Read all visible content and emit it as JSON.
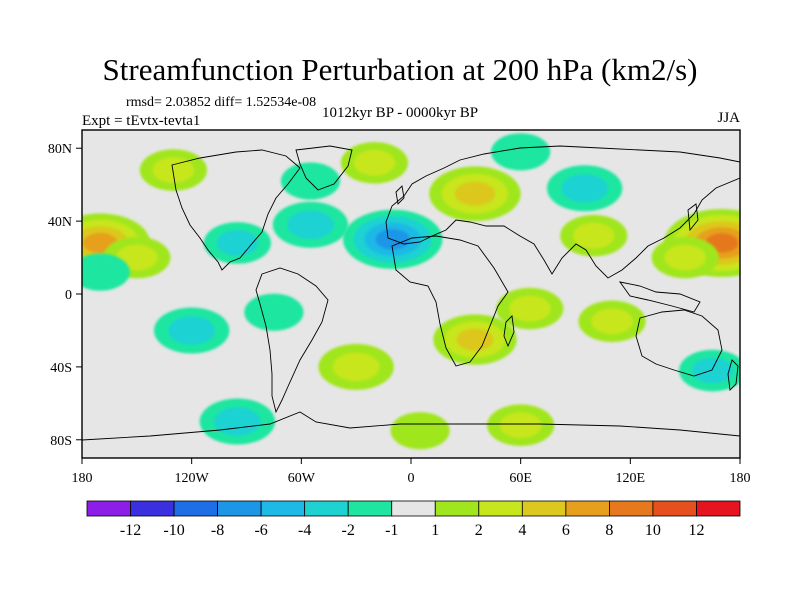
{
  "chart_data": {
    "type": "contour-map",
    "title": "Streamfunction Perturbation at 200 hPa (km2/s)",
    "stats": "rmsd= 2.03852  diff= 1.52534e-08",
    "experiment": "Expt = tEvtx-tevta1",
    "period": "1012kyr BP - 0000kyr BP",
    "season": "JJA",
    "x_ticks": [
      "180",
      "120W",
      "60W",
      "0",
      "60E",
      "120E",
      "180"
    ],
    "y_ticks": [
      "80N",
      "40N",
      "0",
      "40S",
      "80S"
    ],
    "lon_range": [
      -180,
      180
    ],
    "lat_range": [
      -90,
      90
    ],
    "colorbar_labels": [
      "-12",
      "-10",
      "-8",
      "-6",
      "-4",
      "-2",
      "-1",
      "1",
      "2",
      "4",
      "6",
      "8",
      "10",
      "12"
    ],
    "colorbar_colors": [
      "#8c1ee8",
      "#3a30e0",
      "#1e6ee6",
      "#1e96e6",
      "#1eb9e6",
      "#1ed2d2",
      "#1ee6a0",
      "#e6e6e6",
      "#a0e61e",
      "#c8e61e",
      "#dcc81e",
      "#e6a01e",
      "#e6781e",
      "#e6501e",
      "#e6141e"
    ],
    "anomalies": [
      {
        "lon": -170,
        "lat": 28,
        "value": 6
      },
      {
        "lon": 170,
        "lat": 28,
        "value": 8
      },
      {
        "lon": -150,
        "lat": 20,
        "value": 2
      },
      {
        "lon": 150,
        "lat": 20,
        "value": 2
      },
      {
        "lon": 35,
        "lat": 55,
        "value": 5
      },
      {
        "lon": -20,
        "lat": 72,
        "value": 2
      },
      {
        "lon": -55,
        "lat": 62,
        "value": -1
      },
      {
        "lon": -130,
        "lat": 68,
        "value": 2
      },
      {
        "lon": -10,
        "lat": 30,
        "value": -6
      },
      {
        "lon": -55,
        "lat": 38,
        "value": -3
      },
      {
        "lon": -95,
        "lat": 28,
        "value": -2
      },
      {
        "lon": 95,
        "lat": 58,
        "value": -3
      },
      {
        "lon": 60,
        "lat": 78,
        "value": -1
      },
      {
        "lon": 100,
        "lat": 32,
        "value": 2
      },
      {
        "lon": -170,
        "lat": 12,
        "value": -1
      },
      {
        "lon": -120,
        "lat": -20,
        "value": -3
      },
      {
        "lon": -75,
        "lat": -10,
        "value": -1
      },
      {
        "lon": -30,
        "lat": -40,
        "value": 3
      },
      {
        "lon": 35,
        "lat": -25,
        "value": 4
      },
      {
        "lon": 65,
        "lat": -8,
        "value": 2
      },
      {
        "lon": 110,
        "lat": -15,
        "value": 2
      },
      {
        "lon": 165,
        "lat": -42,
        "value": -2
      },
      {
        "lon": -95,
        "lat": -70,
        "value": -3
      },
      {
        "lon": 60,
        "lat": -72,
        "value": 2
      },
      {
        "lon": 5,
        "lat": -75,
        "value": 1
      }
    ]
  }
}
